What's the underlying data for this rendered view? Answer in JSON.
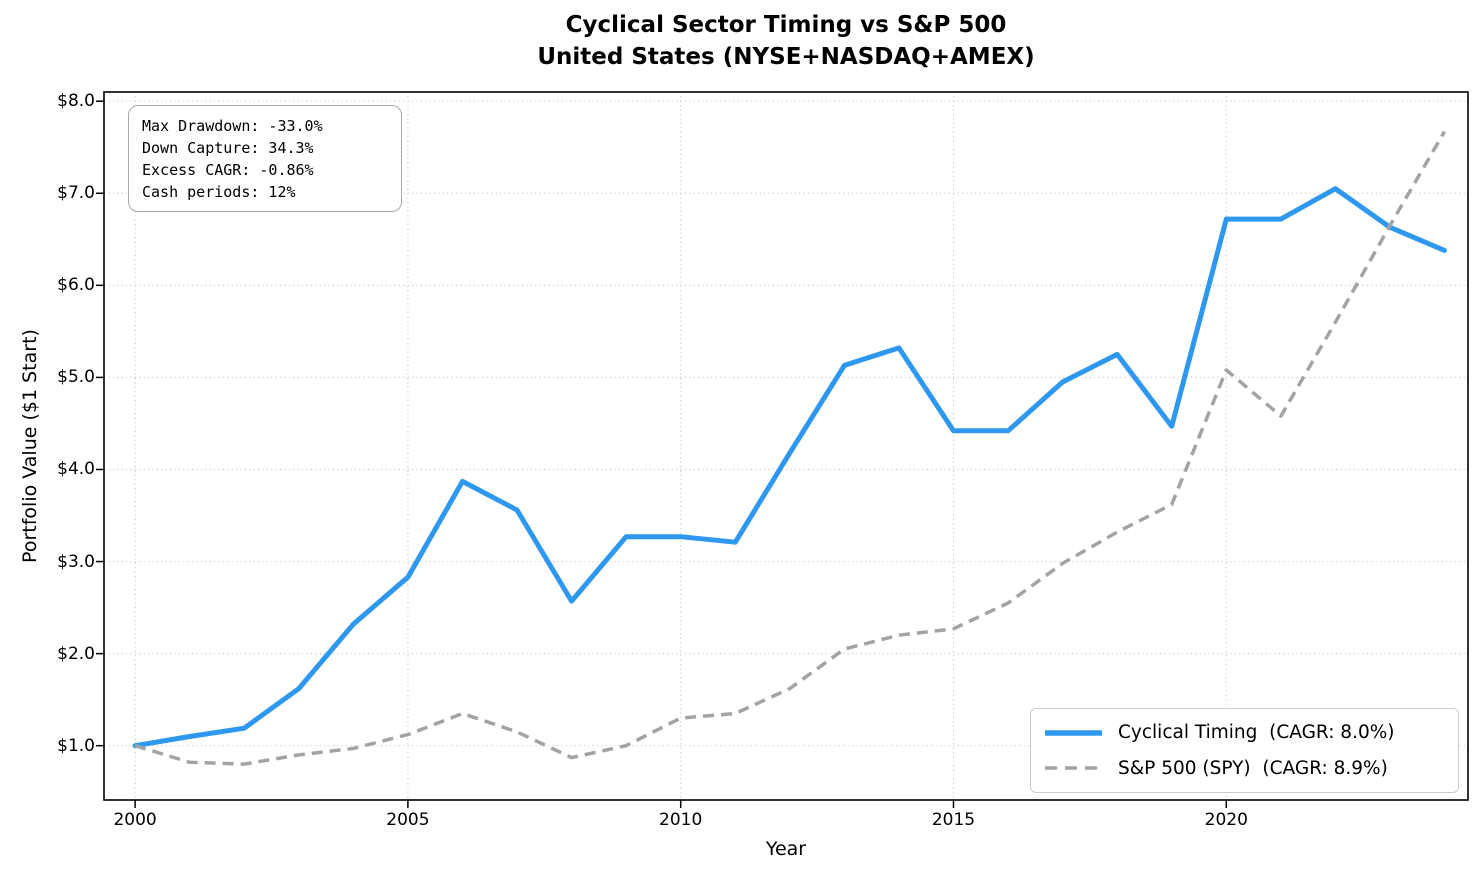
{
  "title": {
    "line1": "Cyclical Sector Timing vs S&P 500",
    "line2": "United States (NYSE+NASDAQ+AMEX)"
  },
  "axes": {
    "xlabel": "Year",
    "ylabel": "Portfolio Value ($1 Start)"
  },
  "stats_box": {
    "lines": [
      "Max Drawdown: -33.0%",
      "Down Capture: 34.3%",
      "Excess CAGR: -0.86%",
      "Cash periods: 12%"
    ]
  },
  "legend": {
    "position": "lower right",
    "items": [
      {
        "label": "Cyclical Timing  (CAGR: 8.0%)",
        "color": "#2E98F0",
        "style": "solid"
      },
      {
        "label": "S&P 500 (SPY)  (CAGR: 8.9%)",
        "color": "#A3A3A3",
        "style": "dashed"
      }
    ]
  },
  "chart_data": {
    "type": "line",
    "title": "Cyclical Sector Timing vs S&P 500",
    "subtitle": "United States (NYSE+NASDAQ+AMEX)",
    "xlabel": "Year",
    "ylabel": "Portfolio Value ($1 Start)",
    "grid": true,
    "legend_position": "lower right",
    "x": [
      2000,
      2001,
      2002,
      2003,
      2004,
      2005,
      2006,
      2007,
      2008,
      2009,
      2010,
      2011,
      2012,
      2013,
      2014,
      2015,
      2016,
      2017,
      2018,
      2019,
      2020,
      2021,
      2022,
      2023,
      2024
    ],
    "series": [
      {
        "name": "Cyclical Timing  (CAGR: 8.0%)",
        "color": "#2E98F0",
        "style": "solid",
        "line_width": 5,
        "values": [
          1.0,
          1.1,
          1.19,
          1.62,
          2.32,
          2.83,
          3.87,
          3.56,
          2.57,
          3.27,
          3.27,
          3.21,
          4.18,
          5.13,
          5.32,
          4.42,
          4.42,
          4.95,
          5.25,
          4.47,
          6.72,
          6.72,
          7.05,
          6.63,
          6.38
        ]
      },
      {
        "name": "S&P 500 (SPY)  (CAGR: 8.9%)",
        "color": "#A3A3A3",
        "style": "dashed",
        "line_width": 3.5,
        "values": [
          1.0,
          0.82,
          0.8,
          0.9,
          0.97,
          1.12,
          1.35,
          1.15,
          0.87,
          1.0,
          1.3,
          1.35,
          1.62,
          2.05,
          2.2,
          2.27,
          2.55,
          2.98,
          3.32,
          3.62,
          5.08,
          4.58,
          5.6,
          6.65,
          7.67
        ]
      }
    ],
    "xticks": [
      2000,
      2005,
      2010,
      2015,
      2020
    ],
    "yticks": [
      {
        "value": 1,
        "label": "$1.0"
      },
      {
        "value": 2,
        "label": "$2.0"
      },
      {
        "value": 3,
        "label": "$3.0"
      },
      {
        "value": 4,
        "label": "$4.0"
      },
      {
        "value": 5,
        "label": "$5.0"
      },
      {
        "value": 6,
        "label": "$6.0"
      },
      {
        "value": 7,
        "label": "$7.0"
      },
      {
        "value": 8,
        "label": "$8.0"
      }
    ],
    "xlim": [
      1999.43,
      2024.43
    ],
    "ylim": [
      0.41,
      8.1
    ]
  }
}
